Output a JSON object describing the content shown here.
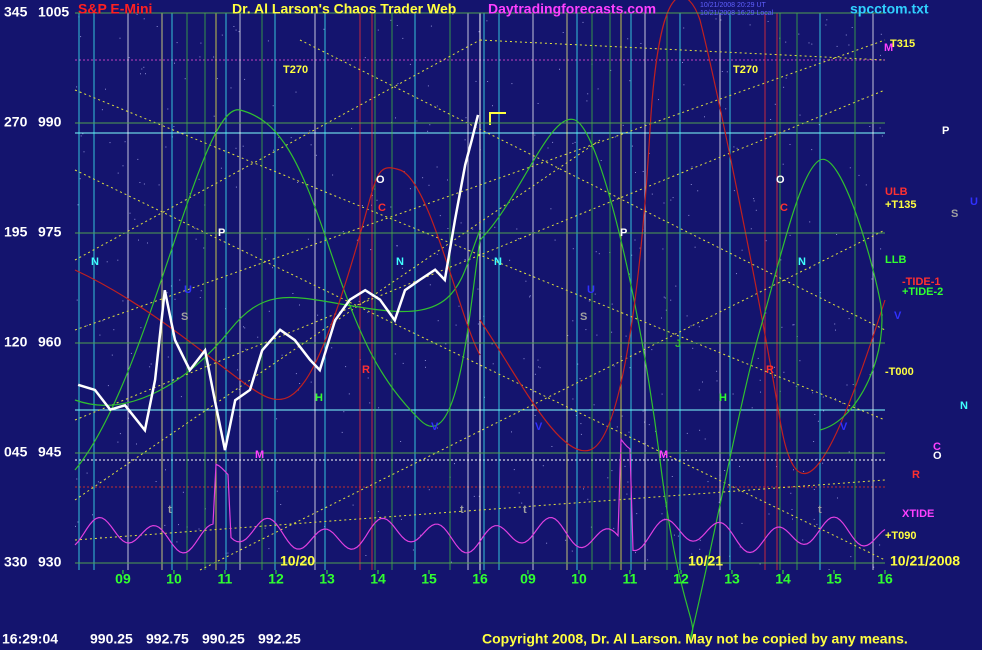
{
  "chart_data": {
    "type": "line",
    "title": "S&P E-Mini",
    "subtitle": "Dr. Al Larson's Chaos Trader Web",
    "site": "Daytradingforecasts.com",
    "file_name": "spcctom.txt",
    "timestamps": [
      "10/21/2008 20:29 UT",
      "10/21/2008 16:29 Local"
    ],
    "copyright": "Copyright 2008, Dr. Al Larson. May not be copied by any means.",
    "last_bar": {
      "time": "16:29:04",
      "open": 990.25,
      "high": 992.75,
      "low": 990.25,
      "close": 992.25
    },
    "ylim": [
      930,
      1005
    ],
    "yticks": [
      930,
      945,
      960,
      975,
      990,
      1005
    ],
    "degree_labels": [
      "330",
      "045",
      "120",
      "195",
      "270",
      "345"
    ],
    "xlim": [
      8.06,
      16
    ],
    "xticks": [
      {
        "value": 9,
        "label": "09"
      },
      10,
      11,
      12,
      13,
      14,
      15,
      16
    ],
    "xticks2": [
      {
        "value": 9,
        "label": "09"
      },
      10,
      11,
      12,
      13,
      14,
      15,
      16
    ],
    "dates": [
      "10/20",
      "10/21",
      "10/21/2008"
    ],
    "grid": true,
    "series": [
      {
        "name": "S&P E-Mini",
        "color": "#ffffff",
        "x": [
          8.12,
          8.45,
          8.75,
          9.04,
          9.43,
          9.63,
          9.82,
          10.02,
          10.31,
          10.61,
          10.8,
          11.0,
          11.2,
          11.49,
          11.73,
          12.08,
          12.37,
          12.67,
          12.86,
          13.16,
          13.45,
          13.75,
          14.04,
          14.33,
          14.53,
          14.82,
          15.12,
          15.31,
          15.51,
          15.71,
          15.84,
          15.96
        ],
        "values": [
          954.3,
          953.6,
          950.9,
          951.5,
          948.1,
          955.0,
          967.2,
          960.4,
          956.3,
          959.0,
          952.2,
          945.4,
          952.2,
          953.6,
          959.0,
          961.8,
          960.4,
          957.7,
          956.3,
          963.1,
          965.9,
          967.2,
          965.9,
          963.1,
          967.2,
          968.6,
          970.0,
          968.6,
          976.8,
          984.3,
          987.7,
          991.1
        ]
      }
    ],
    "annotations": [
      {
        "text": "T270",
        "color": "#ffff40"
      },
      {
        "text": "T270",
        "color": "#ffff40"
      },
      {
        "text": "T315",
        "color": "#ffff40"
      },
      {
        "text": "M",
        "color": "#ff40ff"
      },
      {
        "text": "O",
        "color": "#ffffff"
      },
      {
        "text": "C",
        "color": "#ff3030"
      },
      {
        "text": "O",
        "color": "#ffffff"
      },
      {
        "text": "C",
        "color": "#ff3030"
      },
      {
        "text": "P",
        "color": "#ffffff"
      },
      {
        "text": "P",
        "color": "#ffffff"
      },
      {
        "text": "P",
        "color": "#ffffff"
      },
      {
        "text": "N",
        "color": "#40ffff"
      },
      {
        "text": "N",
        "color": "#40ffff"
      },
      {
        "text": "N",
        "color": "#40ffff"
      },
      {
        "text": "N",
        "color": "#40ffff"
      },
      {
        "text": "N",
        "color": "#40ffff"
      },
      {
        "text": "U",
        "color": "#3030ff"
      },
      {
        "text": "U",
        "color": "#3030ff"
      },
      {
        "text": "U",
        "color": "#3030ff"
      },
      {
        "text": "S",
        "color": "#a0a0a0"
      },
      {
        "text": "S",
        "color": "#a0a0a0"
      },
      {
        "text": "S",
        "color": "#a0a0a0"
      },
      {
        "text": "V",
        "color": "#3030ff"
      },
      {
        "text": "V",
        "color": "#3030ff"
      },
      {
        "text": "V",
        "color": "#3030ff"
      },
      {
        "text": "V",
        "color": "#3030ff"
      },
      {
        "text": "H",
        "color": "#30ff30"
      },
      {
        "text": "H",
        "color": "#30ff30"
      },
      {
        "text": "J",
        "color": "#30c030"
      },
      {
        "text": "M",
        "color": "#ff40ff"
      },
      {
        "text": "M",
        "color": "#ff40ff"
      },
      {
        "text": "R",
        "color": "#ff3030"
      },
      {
        "text": "R",
        "color": "#ff3030"
      },
      {
        "text": "R",
        "color": "#ff3030"
      },
      {
        "text": "C",
        "color": "#ff40ff"
      },
      {
        "text": "O",
        "color": "#ffffff"
      },
      {
        "text": "t",
        "color": "#a0a0a0"
      },
      {
        "text": "t",
        "color": "#a0a0a0"
      },
      {
        "text": "t",
        "color": "#a0a0a0"
      },
      {
        "text": "t",
        "color": "#a0a0a0"
      },
      {
        "text": "ULB",
        "color": "#ff3030"
      },
      {
        "text": "+T135",
        "color": "#ffff40"
      },
      {
        "text": "LLB",
        "color": "#30ff30"
      },
      {
        "text": "-TIDE-1",
        "color": "#ff3030"
      },
      {
        "text": "+TIDE-2",
        "color": "#30ff30"
      },
      {
        "text": "-T000",
        "color": "#ffff40"
      },
      {
        "text": "XTIDE",
        "color": "#ff40ff"
      },
      {
        "text": "+T090",
        "color": "#ffff40"
      }
    ]
  }
}
